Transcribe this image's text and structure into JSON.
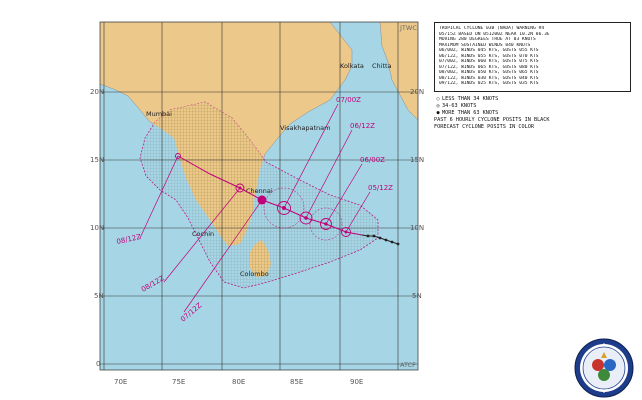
{
  "map": {
    "corner_top": "JTWC",
    "corner_bottom": "ATCF",
    "lat_labels": [
      "20N",
      "15N",
      "10N",
      "5N",
      "0"
    ],
    "lon_labels": [
      "70E",
      "75E",
      "80E",
      "85E",
      "90E"
    ],
    "places": [
      "Kolkata",
      "Chitta",
      "Mumbai",
      "Visakhapatnam",
      "Chennai",
      "Cochin",
      "Colombo"
    ],
    "track_times": [
      "07/00Z",
      "06/12Z",
      "06/00Z",
      "05/12Z",
      "08/12Z",
      "08/12Z",
      "07/12Z"
    ],
    "colors": {
      "land": "#ecc88a",
      "sea": "#a6d6e6",
      "track": "#c0007a",
      "swath": "#9a9a9a",
      "swath_land": "#d9b866"
    }
  },
  "info_box": {
    "lines": [
      "TROPICAL CYCLONE 03B (NADA) WARNING #4",
      "05/15Z BASED ON 051200Z NEAR 10.2N 86.3E",
      "MOVING 280 DEGREES TRUE AT 03 KNOTS",
      "MAXIMUM SUSTAINED WINDS 040 KNOTS",
      "06/00Z, WINDS 045 KTS, GUSTS 055 KTS",
      "06/12Z, WINDS 055 KTS, GUSTS 070 KTS",
      "07/00Z, WINDS 060 KTS, GUSTS 075 KTS",
      "07/12Z, WINDS 065 KTS, GUSTS 080 KTS",
      "08/00Z, WINDS 050 KTS, GUSTS 065 KTS",
      "08/12Z, WINDS 030 KTS, GUSTS 040 KTS",
      "09/12Z, WINDS 025 KTS, GUSTS 035 KTS"
    ]
  },
  "legend": {
    "items": [
      {
        "symbol": "○",
        "label": "LESS THAN 34 KNOTS"
      },
      {
        "symbol": "◎",
        "label": "34-63 KNOTS"
      },
      {
        "symbol": "●",
        "label": "MORE THAN 63 KNOTS"
      },
      {
        "symbol": "",
        "label": "PAST 6 HOURLY CYCLONE POSITS IN BLACK"
      },
      {
        "symbol": "",
        "label": "FORECAST CYCLONE POSITS IN COLOR"
      }
    ]
  },
  "seal": {
    "name": "JOINT TYPHOON WARNING CENTER"
  }
}
